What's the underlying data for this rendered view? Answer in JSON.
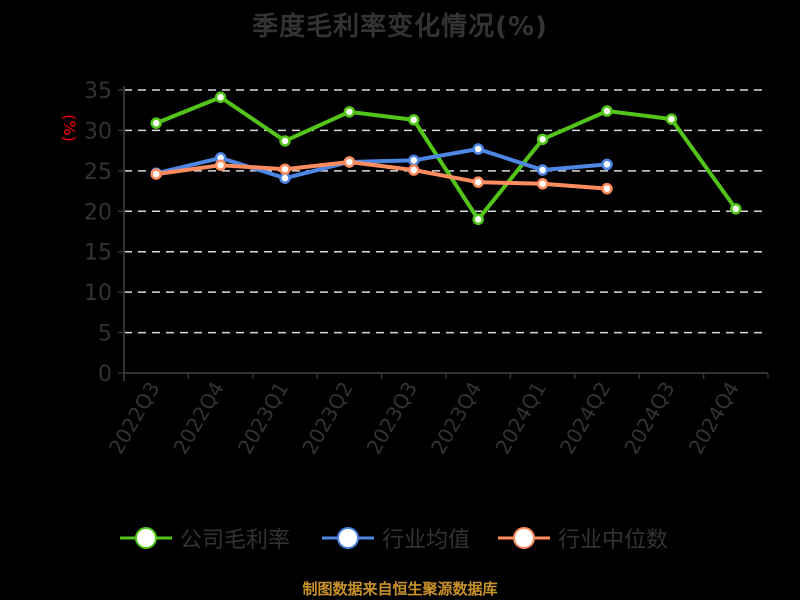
{
  "title": "季度毛利率变化情况(%)",
  "footer": "制图数据来自恒生聚源数据库",
  "colors": {
    "company": "#52c41a",
    "industry_avg": "#4e86e4",
    "industry_median": "#ff8c5f",
    "axis": "#333333",
    "ylabel": "#ff0000",
    "grid": "#d9d9d9",
    "footer": "#c8912a"
  },
  "legend": [
    {
      "label": "公司毛利率",
      "color": "#52c41a"
    },
    {
      "label": "行业均值",
      "color": "#4e86e4"
    },
    {
      "label": "行业中位数",
      "color": "#ff8c5f"
    }
  ],
  "chart_data": {
    "type": "line",
    "title": "季度毛利率变化情况(%)",
    "xlabel": "",
    "ylabel": "(%)",
    "ylim": [
      0,
      35
    ],
    "yticks": [
      0,
      5,
      10,
      15,
      20,
      25,
      30,
      35
    ],
    "grid": true,
    "legend_position": "bottom",
    "categories": [
      "2022Q3",
      "2022Q4",
      "2023Q1",
      "2023Q2",
      "2023Q3",
      "2023Q4",
      "2024Q1",
      "2024Q2",
      "2024Q3",
      "2024Q4"
    ],
    "series": [
      {
        "name": "公司毛利率",
        "values": [
          30.9,
          34.1,
          28.7,
          32.3,
          31.3,
          19.0,
          28.9,
          32.4,
          31.4,
          20.3
        ]
      },
      {
        "name": "行业均值",
        "values": [
          24.7,
          26.6,
          24.1,
          26.1,
          26.3,
          27.7,
          25.1,
          25.8,
          null,
          null
        ]
      },
      {
        "name": "行业中位数",
        "values": [
          24.6,
          25.7,
          25.2,
          26.1,
          25.1,
          23.6,
          23.4,
          22.8,
          null,
          null
        ]
      }
    ],
    "source": "制图数据来自恒生聚源数据库"
  }
}
